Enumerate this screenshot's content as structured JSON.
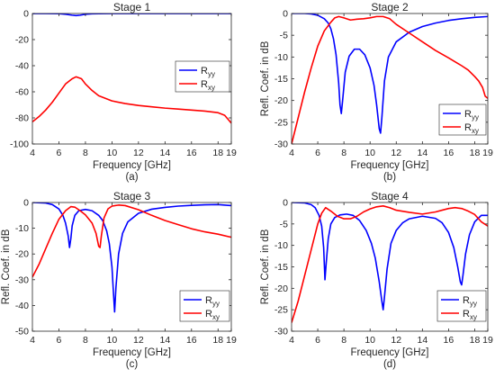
{
  "chart_data": [
    {
      "type": "line",
      "panel_label": "(a)",
      "title": "Stage 1",
      "xlabel": "Frequency [GHz]",
      "ylabel": "",
      "xlim": [
        4,
        19
      ],
      "ylim": [
        -100,
        0
      ],
      "xticks": [
        "4",
        "6",
        "8",
        "10",
        "12",
        "14",
        "16",
        "18",
        "19"
      ],
      "yticks": [
        "0",
        "-20",
        "-40",
        "-60",
        "-80",
        "-100"
      ],
      "xtick_values": [
        4,
        6,
        8,
        10,
        12,
        14,
        16,
        18,
        19
      ],
      "ytick_values": [
        0,
        -20,
        -40,
        -60,
        -80,
        -100
      ],
      "legend_position": "center-right",
      "series": [
        {
          "name": "R",
          "sub": "yy",
          "color": "#0000ff",
          "x": [
            4,
            5,
            6,
            6.5,
            7,
            7.3,
            7.6,
            8,
            8.5,
            9,
            10,
            12,
            14,
            16,
            18,
            19
          ],
          "y": [
            -0.05,
            -0.05,
            -0.15,
            -0.6,
            -1.3,
            -1.6,
            -1.3,
            -0.6,
            -0.2,
            -0.1,
            -0.05,
            -0.05,
            -0.05,
            -0.05,
            -0.05,
            -0.05
          ]
        },
        {
          "name": "R",
          "sub": "xy",
          "color": "#ff0000",
          "x": [
            4,
            4.5,
            5,
            5.5,
            6,
            6.5,
            7,
            7.3,
            7.7,
            8,
            8.5,
            9,
            10,
            11,
            12,
            13,
            14,
            15,
            16,
            17,
            18,
            18.5,
            19
          ],
          "y": [
            -83,
            -79,
            -74,
            -68,
            -61,
            -54,
            -50,
            -48.5,
            -50,
            -54,
            -59,
            -63,
            -67,
            -69,
            -70.5,
            -71.5,
            -72.5,
            -73.2,
            -74,
            -74.8,
            -76,
            -78,
            -84
          ]
        }
      ]
    },
    {
      "type": "line",
      "panel_label": "(b)",
      "title": "Stage 2",
      "xlabel": "Frequency [GHz]",
      "ylabel": "Refl. Coef. in dB",
      "xlim": [
        4,
        19
      ],
      "ylim": [
        -30,
        0
      ],
      "xticks": [
        "4",
        "6",
        "8",
        "10",
        "12",
        "14",
        "16",
        "18",
        "19"
      ],
      "yticks": [
        "0",
        "-5",
        "-10",
        "-15",
        "-20",
        "-25",
        "-30"
      ],
      "xtick_values": [
        4,
        6,
        8,
        10,
        12,
        14,
        16,
        18,
        19
      ],
      "ytick_values": [
        0,
        -5,
        -10,
        -15,
        -20,
        -25,
        -30
      ],
      "legend_position": "bottom-right",
      "series": [
        {
          "name": "R",
          "sub": "yy",
          "color": "#0000ff",
          "x": [
            4,
            5,
            5.5,
            6,
            6.5,
            6.8,
            7,
            7.2,
            7.4,
            7.6,
            7.7,
            7.8,
            7.9,
            8.1,
            8.4,
            8.8,
            9.2,
            9.6,
            10.0,
            10.3,
            10.5,
            10.7,
            10.8,
            10.9,
            11.1,
            11.4,
            12,
            13,
            14,
            15,
            16,
            17,
            18,
            19
          ],
          "y": [
            0,
            0,
            -0.1,
            -0.4,
            -1.2,
            -2.2,
            -3.5,
            -5.8,
            -9.5,
            -16,
            -21,
            -23,
            -20,
            -13.5,
            -9.8,
            -8.2,
            -8.2,
            -9.5,
            -12.5,
            -16.5,
            -21,
            -26.5,
            -27.5,
            -24,
            -15.5,
            -10,
            -6.5,
            -4.3,
            -3.0,
            -2.2,
            -1.6,
            -1.2,
            -0.9,
            -0.7
          ]
        },
        {
          "name": "R",
          "sub": "xy",
          "color": "#ff0000",
          "x": [
            4,
            4.5,
            5,
            5.5,
            6,
            6.5,
            7,
            7.3,
            7.6,
            8,
            8.5,
            9,
            9.5,
            10,
            10.5,
            11,
            11.5,
            12,
            13,
            14,
            15,
            16,
            17,
            17.5,
            18,
            18.3,
            18.6,
            18.8,
            19
          ],
          "y": [
            -30,
            -24,
            -18,
            -12.5,
            -7.5,
            -4,
            -2,
            -1,
            -0.7,
            -1.0,
            -1.5,
            -1.3,
            -1.2,
            -1.0,
            -0.7,
            -0.7,
            -1.2,
            -2.5,
            -4.5,
            -6.5,
            -8.5,
            -10.2,
            -12,
            -13,
            -14.5,
            -15.5,
            -17,
            -19,
            -19.5
          ]
        }
      ]
    },
    {
      "type": "line",
      "panel_label": "(c)",
      "title": "Stage 3",
      "xlabel": "Frequency [GHz]",
      "ylabel": "Refl. Coef. in dB",
      "xlim": [
        4,
        19
      ],
      "ylim": [
        -50,
        0
      ],
      "xticks": [
        "4",
        "6",
        "8",
        "10",
        "12",
        "14",
        "16",
        "18",
        "19"
      ],
      "yticks": [
        "0",
        "-10",
        "-20",
        "-30",
        "-40",
        "-50"
      ],
      "xtick_values": [
        4,
        6,
        8,
        10,
        12,
        14,
        16,
        18,
        19
      ],
      "ytick_values": [
        0,
        -10,
        -20,
        -30,
        -40,
        -50
      ],
      "legend_position": "bottom-right",
      "series": [
        {
          "name": "R",
          "sub": "yy",
          "color": "#0000ff",
          "x": [
            4,
            5,
            5.5,
            6,
            6.3,
            6.5,
            6.7,
            6.8,
            6.9,
            7.0,
            7.2,
            7.5,
            8,
            8.5,
            9,
            9.3,
            9.6,
            9.8,
            10.0,
            10.1,
            10.2,
            10.3,
            10.5,
            10.8,
            11.2,
            12,
            13,
            14,
            15,
            16,
            17,
            18,
            19
          ],
          "y": [
            0,
            -0.2,
            -0.8,
            -2.5,
            -5,
            -8,
            -13,
            -17.5,
            -14,
            -9,
            -5,
            -3.2,
            -2.7,
            -3.2,
            -5,
            -7,
            -11,
            -16,
            -25,
            -34,
            -42.5,
            -33,
            -20,
            -12,
            -7.5,
            -4.2,
            -2.6,
            -1.9,
            -1.4,
            -1.1,
            -0.9,
            -0.8,
            -1.2
          ]
        },
        {
          "name": "R",
          "sub": "xy",
          "color": "#ff0000",
          "x": [
            4,
            4.5,
            5,
            5.5,
            6,
            6.5,
            6.9,
            7.2,
            7.6,
            8,
            8.5,
            8.8,
            9.0,
            9.1,
            9.2,
            9.4,
            9.7,
            10.0,
            10.5,
            11,
            12,
            13,
            14,
            15,
            16,
            17,
            18,
            19
          ],
          "y": [
            -29,
            -24,
            -18,
            -12,
            -6.5,
            -3.2,
            -1.6,
            -1.8,
            -3.2,
            -4.8,
            -8,
            -12,
            -17,
            -17.5,
            -13,
            -6,
            -2.5,
            -1.4,
            -1.0,
            -1.2,
            -2.8,
            -5,
            -7,
            -8.6,
            -10.2,
            -11.4,
            -12.3,
            -13.5
          ]
        }
      ]
    },
    {
      "type": "line",
      "panel_label": "(d)",
      "title": "Stage 4",
      "xlabel": "Frequency [GHz]",
      "ylabel": "Refl. Coef. in dB",
      "xlim": [
        4,
        19
      ],
      "ylim": [
        -30,
        0
      ],
      "xticks": [
        "4",
        "6",
        "8",
        "10",
        "12",
        "14",
        "16",
        "18",
        "19"
      ],
      "yticks": [
        "0",
        "-5",
        "-10",
        "-15",
        "-20",
        "-25",
        "-30"
      ],
      "xtick_values": [
        4,
        6,
        8,
        10,
        12,
        14,
        16,
        18,
        19
      ],
      "ytick_values": [
        0,
        -5,
        -10,
        -15,
        -20,
        -25,
        -30
      ],
      "legend_position": "bottom-right",
      "series": [
        {
          "name": "R",
          "sub": "yy",
          "color": "#0000ff",
          "x": [
            4,
            5,
            5.5,
            5.8,
            6.1,
            6.3,
            6.45,
            6.55,
            6.65,
            6.8,
            7.0,
            7.3,
            7.7,
            8.2,
            8.7,
            9.2,
            9.7,
            10.1,
            10.4,
            10.7,
            10.9,
            11.0,
            11.1,
            11.3,
            11.6,
            12,
            12.5,
            13,
            14,
            15,
            15.5,
            16,
            16.4,
            16.7,
            16.9,
            17.0,
            17.1,
            17.3,
            17.6,
            18,
            18.5,
            19
          ],
          "y": [
            0,
            -0.1,
            -0.5,
            -1.2,
            -3,
            -5.5,
            -10.5,
            -18,
            -14,
            -8.5,
            -5,
            -3.5,
            -2.9,
            -2.7,
            -3.0,
            -4.2,
            -6.5,
            -9.5,
            -13,
            -18.5,
            -23,
            -25,
            -22,
            -15.5,
            -9.5,
            -6.5,
            -4.7,
            -3.8,
            -3.2,
            -3.7,
            -4.7,
            -7,
            -10.5,
            -15,
            -18.5,
            -19.2,
            -17,
            -12,
            -7.5,
            -4.5,
            -3.0,
            -3.0
          ]
        },
        {
          "name": "R",
          "sub": "xy",
          "color": "#ff0000",
          "x": [
            4,
            4.5,
            5,
            5.5,
            6,
            6.3,
            6.6,
            7.0,
            7.5,
            8,
            8.5,
            9,
            9.5,
            10,
            10.5,
            11,
            11.5,
            12,
            13,
            14,
            15,
            15.5,
            16,
            16.5,
            17,
            17.5,
            18,
            18.5,
            19
          ],
          "y": [
            -28,
            -23,
            -17,
            -11,
            -5,
            -2.5,
            -1.2,
            -2.0,
            -3.2,
            -3.8,
            -3.8,
            -3.2,
            -2.2,
            -1.5,
            -1.0,
            -0.8,
            -1.2,
            -1.8,
            -2.3,
            -2.7,
            -2.2,
            -1.8,
            -1.4,
            -1.2,
            -1.4,
            -2.0,
            -2.8,
            -4.5,
            -5.5
          ]
        }
      ]
    }
  ]
}
